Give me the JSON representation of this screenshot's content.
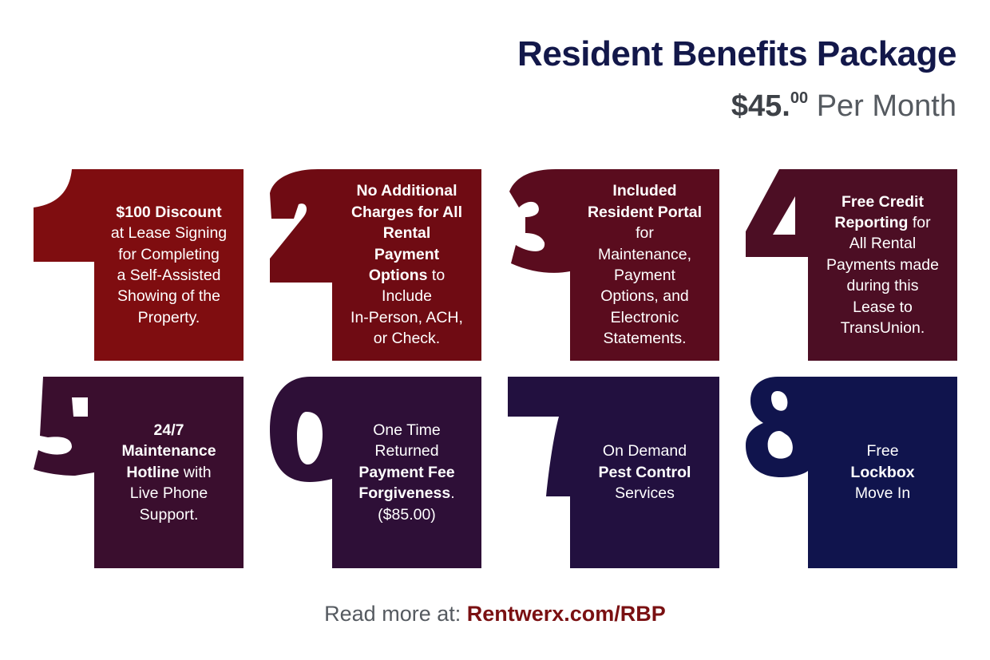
{
  "header": {
    "title": "Resident Benefits Package",
    "price_dollars": "$45.",
    "price_cents": "00",
    "price_period": "Per Month"
  },
  "colors": {
    "title": "#13184a",
    "footer_link": "#7a1012",
    "card_1": "#7f0d10",
    "card_2": "#6f0b13",
    "card_3": "#5a0c1e",
    "card_4": "#4c0e24",
    "card_5": "#3a0e2e",
    "card_6": "#2e0f37",
    "card_7": "#22103f",
    "card_8": "#10144d"
  },
  "cards": [
    {
      "number": "1",
      "lines": [
        [
          {
            "t": "$100 Discount",
            "b": true
          }
        ],
        [
          {
            "t": "at Lease Signing"
          }
        ],
        [
          {
            "t": "for Completing"
          }
        ],
        [
          {
            "t": "a Self-Assisted"
          }
        ],
        [
          {
            "t": "Showing of the"
          }
        ],
        [
          {
            "t": "Property."
          }
        ]
      ]
    },
    {
      "number": "2",
      "lines": [
        [
          {
            "t": "No Additional",
            "b": true
          }
        ],
        [
          {
            "t": "Charges for All",
            "b": true
          }
        ],
        [
          {
            "t": "Rental",
            "b": true
          }
        ],
        [
          {
            "t": "Payment",
            "b": true
          }
        ],
        [
          {
            "t": "Options",
            "b": true
          },
          {
            "t": " to"
          }
        ],
        [
          {
            "t": "Include"
          }
        ],
        [
          {
            "t": "In-Person, ACH,"
          }
        ],
        [
          {
            "t": "or Check."
          }
        ]
      ]
    },
    {
      "number": "3",
      "lines": [
        [
          {
            "t": "Included",
            "b": true
          }
        ],
        [
          {
            "t": "Resident Portal",
            "b": true
          }
        ],
        [
          {
            "t": "for"
          }
        ],
        [
          {
            "t": "Maintenance,"
          }
        ],
        [
          {
            "t": "Payment"
          }
        ],
        [
          {
            "t": "Options, and"
          }
        ],
        [
          {
            "t": "Electronic"
          }
        ],
        [
          {
            "t": "Statements."
          }
        ]
      ]
    },
    {
      "number": "4",
      "lines": [
        [
          {
            "t": "Free Credit",
            "b": true
          }
        ],
        [
          {
            "t": "Reporting",
            "b": true
          },
          {
            "t": " for"
          }
        ],
        [
          {
            "t": "All Rental"
          }
        ],
        [
          {
            "t": "Payments made"
          }
        ],
        [
          {
            "t": "during this"
          }
        ],
        [
          {
            "t": "Lease to"
          }
        ],
        [
          {
            "t": "TransUnion."
          }
        ]
      ]
    },
    {
      "number": "5",
      "lines": [
        [
          {
            "t": "24/7",
            "b": true
          }
        ],
        [
          {
            "t": "Maintenance",
            "b": true
          }
        ],
        [
          {
            "t": "Hotline",
            "b": true
          },
          {
            "t": " with"
          }
        ],
        [
          {
            "t": "Live Phone"
          }
        ],
        [
          {
            "t": "Support."
          }
        ]
      ]
    },
    {
      "number": "6",
      "lines": [
        [
          {
            "t": "One Time"
          }
        ],
        [
          {
            "t": "Returned"
          }
        ],
        [
          {
            "t": "Payment Fee",
            "b": true
          }
        ],
        [
          {
            "t": "Forgiveness",
            "b": true
          },
          {
            "t": "."
          }
        ],
        [
          {
            "t": "($85.00)"
          }
        ]
      ]
    },
    {
      "number": "7",
      "lines": [
        [
          {
            "t": "On Demand"
          }
        ],
        [
          {
            "t": "Pest Control",
            "b": true
          }
        ],
        [
          {
            "t": "Services"
          }
        ]
      ]
    },
    {
      "number": "8",
      "lines": [
        [
          {
            "t": "Free"
          }
        ],
        [
          {
            "t": "Lockbox",
            "b": true
          }
        ],
        [
          {
            "t": "Move In"
          }
        ]
      ]
    }
  ],
  "footer": {
    "prefix": "Read more at: ",
    "link": "Rentwerx.com/RBP"
  }
}
